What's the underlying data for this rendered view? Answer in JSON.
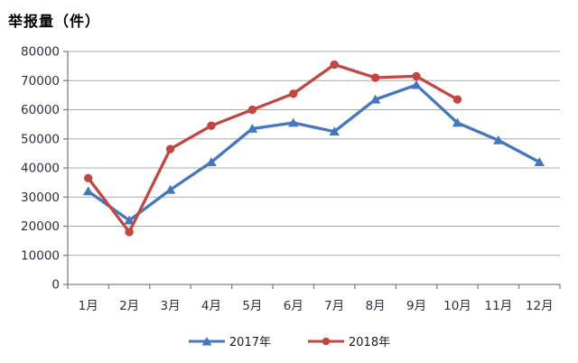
{
  "title": "举报量（件）",
  "chart_data": {
    "type": "line",
    "title": "举报量（件）",
    "categories": [
      "1月",
      "2月",
      "3月",
      "4月",
      "5月",
      "6月",
      "7月",
      "8月",
      "9月",
      "10月",
      "11月",
      "12月"
    ],
    "series": [
      {
        "name": "2017年",
        "color": "#4477BE",
        "marker": "triangle",
        "values": [
          32000,
          22000,
          32500,
          42000,
          53500,
          55500,
          52500,
          63500,
          68500,
          55500,
          49500,
          42000
        ]
      },
      {
        "name": "2018年",
        "color": "#C14743",
        "marker": "circle",
        "values": [
          36500,
          18000,
          46500,
          54500,
          60000,
          65500,
          75500,
          71000,
          71500,
          63500
        ]
      }
    ],
    "ylim": [
      0,
      80000
    ],
    "ytick_step": 10000,
    "ytick_labels": [
      "0",
      "10000",
      "20000",
      "30000",
      "40000",
      "50000",
      "60000",
      "70000",
      "80000"
    ],
    "grid": "horizontal",
    "legend_position": "bottom",
    "axis_color": "#7F7F7F",
    "gridline_color": "#ABABAB",
    "tick_label_color": "#2D2D44"
  }
}
